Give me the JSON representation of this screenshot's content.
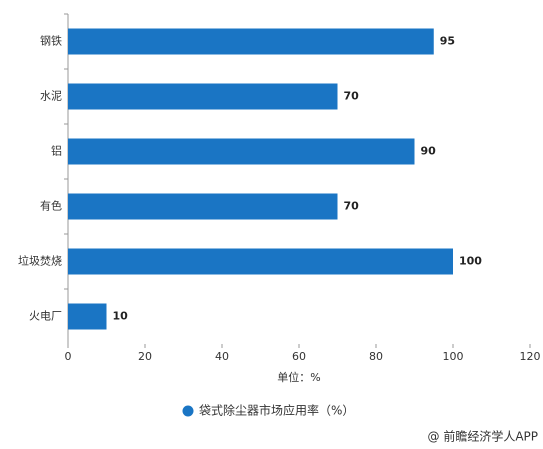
{
  "chart_data": {
    "type": "barh",
    "categories": [
      "钢铁",
      "水泥",
      "铝",
      "有色",
      "垃圾焚烧",
      "火电厂"
    ],
    "series": [
      {
        "name": "袋式除尘器市场应用率（%）",
        "color": "#1a75c4",
        "values": [
          95,
          70,
          90,
          70,
          100,
          10
        ]
      }
    ],
    "xlim": [
      0,
      120
    ],
    "xticks": [
      0,
      20,
      40,
      60,
      80,
      100,
      120
    ],
    "x_label": "单位：%",
    "grid": false,
    "legend": "bottom",
    "source": "@ 前瞻经济学人APP"
  }
}
